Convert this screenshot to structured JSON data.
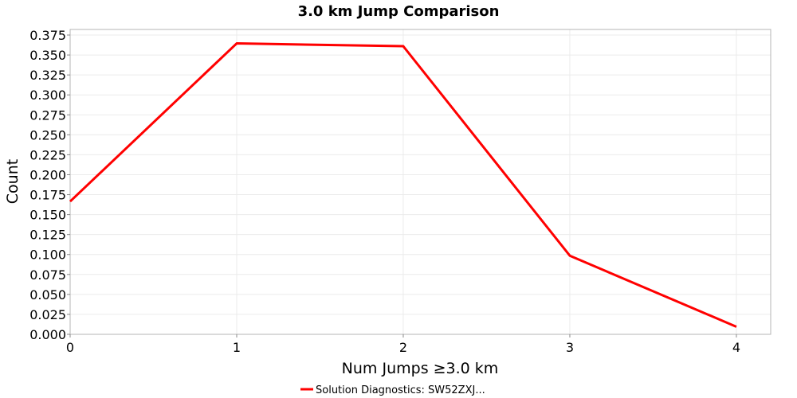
{
  "chart_data": {
    "type": "line",
    "title": "3.0 km Jump Comparison",
    "xlabel": "Num Jumps ≥3.0 km",
    "ylabel": "Count",
    "xlim": [
      0,
      4.206
    ],
    "ylim": [
      0,
      0.382
    ],
    "xticks": [
      0,
      1,
      2,
      3,
      4
    ],
    "yticks": [
      0,
      0.025,
      0.05,
      0.075,
      0.1,
      0.125,
      0.15,
      0.175,
      0.2,
      0.225,
      0.25,
      0.275,
      0.3,
      0.325,
      0.35,
      0.375
    ],
    "grid": true,
    "legend_position": "bottom",
    "series": [
      {
        "name": "Solution Diagnostics: SW52ZXJ...",
        "color": "#ff0000",
        "x": [
          0,
          1,
          2,
          3,
          4
        ],
        "y": [
          0.1665,
          0.3645,
          0.361,
          0.0985,
          0.0095
        ]
      }
    ]
  }
}
